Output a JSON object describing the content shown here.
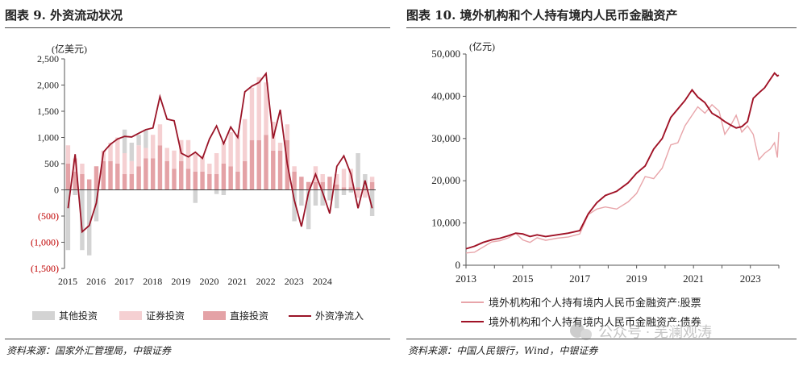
{
  "left_panel": {
    "title": "图表 9. 外资流动状况",
    "source": "资料来源：国家外汇管理局，中银证券"
  },
  "right_panel": {
    "title": "图表 10. 境外机构和个人持有境内人民币金融资产",
    "source": "资料来源：中国人民银行，Wind，中银证券"
  },
  "watermark": "公众号 · 芜澜观涛",
  "colors": {
    "other": "#d3d3d3",
    "securities": "#f5d0d2",
    "direct": "#e4a2a6",
    "net": "#9a1427",
    "stocks": "#e8a5aa",
    "bonds": "#a01226",
    "negative_tick": "#c00000"
  },
  "chart_data": [
    {
      "type": "bar",
      "title": "外资流动状况",
      "ylabel": "(亿美元)",
      "ylim": [
        -1500,
        2500
      ],
      "yticks": [
        2500,
        2000,
        1500,
        1000,
        500,
        0,
        -500,
        -1000,
        -1500
      ],
      "ytick_labels": [
        "2,500",
        "2,000",
        "1,500",
        "1,000",
        "500",
        "0",
        "(500)",
        "(1,000)",
        "(1,500)"
      ],
      "x_labels": [
        "2015",
        "2016",
        "2017",
        "2018",
        "2019",
        "2020",
        "2021",
        "2022",
        "2023",
        "2024"
      ],
      "quarters_start": "2015Q1",
      "series": [
        {
          "name": "其他投资",
          "kind": "bar",
          "values": [
            -1150,
            -100,
            -1150,
            -1250,
            -600,
            0,
            0,
            0,
            450,
            350,
            200,
            350,
            0,
            0,
            0,
            0,
            0,
            0,
            -250,
            0,
            0,
            -80,
            -100,
            0,
            0,
            0,
            0,
            0,
            0,
            0,
            0,
            0,
            -600,
            -300,
            -750,
            -300,
            -300,
            -200,
            -350,
            -100,
            -50,
            650,
            250,
            -500
          ]
        },
        {
          "name": "证券投资",
          "kind": "bar",
          "values": [
            350,
            250,
            200,
            0,
            0,
            200,
            350,
            500,
            400,
            250,
            400,
            200,
            450,
            400,
            250,
            350,
            400,
            550,
            350,
            300,
            200,
            400,
            400,
            650,
            700,
            800,
            1000,
            1200,
            1000,
            550,
            150,
            300,
            100,
            0,
            0,
            300,
            150,
            0,
            200,
            350,
            350,
            -150,
            -150,
            100
          ]
        },
        {
          "name": "直接投资",
          "kind": "bar",
          "values": [
            500,
            350,
            300,
            200,
            450,
            550,
            550,
            500,
            300,
            300,
            450,
            600,
            600,
            850,
            550,
            400,
            550,
            400,
            350,
            350,
            300,
            300,
            500,
            450,
            350,
            550,
            950,
            950,
            1050,
            750,
            750,
            950,
            350,
            250,
            150,
            150,
            150,
            250,
            100,
            50,
            50,
            50,
            50,
            150
          ]
        },
        {
          "name": "外资净流入",
          "kind": "line",
          "values": [
            -350,
            680,
            -800,
            -680,
            -250,
            720,
            870,
            970,
            1020,
            1010,
            1080,
            1150,
            1180,
            1780,
            1350,
            1320,
            700,
            630,
            720,
            600,
            970,
            1220,
            880,
            1200,
            1000,
            1870,
            1980,
            2050,
            2220,
            980,
            1530,
            500,
            -200,
            -700,
            -50,
            300,
            -50,
            -450,
            450,
            650,
            300,
            -350,
            180,
            -350
          ]
        }
      ]
    },
    {
      "type": "line",
      "title": "境外机构和个人持有境内人民币金融资产",
      "ylabel": "(亿元)",
      "ylim": [
        0,
        50000
      ],
      "yticks": [
        0,
        10000,
        20000,
        30000,
        40000,
        50000
      ],
      "ytick_labels": [
        "0",
        "10,000",
        "20,000",
        "30,000",
        "40,000",
        "50,000"
      ],
      "xlim": [
        2013,
        2024
      ],
      "x_labels": [
        "2013",
        "2015",
        "2017",
        "2019",
        "2021",
        "2023"
      ],
      "series": [
        {
          "name": "境外机构和个人持有境内人民币金融资产:股票",
          "x": [
            2013.0,
            2013.3,
            2013.6,
            2013.9,
            2014.2,
            2014.5,
            2014.75,
            2015.0,
            2015.25,
            2015.5,
            2015.8,
            2016.2,
            2016.6,
            2017.0,
            2017.3,
            2017.6,
            2017.9,
            2018.3,
            2018.7,
            2019.0,
            2019.3,
            2019.6,
            2019.9,
            2020.2,
            2020.45,
            2020.7,
            2020.95,
            2021.15,
            2021.4,
            2021.65,
            2021.9,
            2022.1,
            2022.3,
            2022.5,
            2022.7,
            2022.9,
            2023.1,
            2023.3,
            2023.5,
            2023.7,
            2023.85,
            2023.95,
            2024.0
          ],
          "values": [
            2900,
            3100,
            4300,
            5500,
            5800,
            6500,
            7600,
            6000,
            5400,
            6500,
            5900,
            6400,
            6700,
            7400,
            12000,
            13300,
            13800,
            13300,
            15000,
            17000,
            21000,
            20500,
            23000,
            28500,
            29000,
            33000,
            35500,
            37500,
            36000,
            38000,
            36500,
            31000,
            33000,
            35500,
            31500,
            33000,
            31000,
            25000,
            26500,
            27500,
            29000,
            25500,
            31500
          ]
        },
        {
          "name": "境外机构和个人持有境内人民币金融资产:债券",
          "x": [
            2013.0,
            2013.3,
            2013.6,
            2013.9,
            2014.2,
            2014.5,
            2014.75,
            2015.0,
            2015.25,
            2015.5,
            2015.8,
            2016.2,
            2016.6,
            2017.0,
            2017.3,
            2017.6,
            2017.9,
            2018.3,
            2018.7,
            2019.0,
            2019.3,
            2019.6,
            2019.9,
            2020.2,
            2020.45,
            2020.7,
            2020.95,
            2021.15,
            2021.4,
            2021.65,
            2021.9,
            2022.1,
            2022.3,
            2022.5,
            2022.7,
            2022.9,
            2023.1,
            2023.3,
            2023.5,
            2023.7,
            2023.85,
            2023.95,
            2024.0
          ],
          "values": [
            3900,
            4500,
            5400,
            6000,
            6400,
            7000,
            7600,
            7400,
            6800,
            7200,
            6800,
            7200,
            7600,
            8200,
            12200,
            14800,
            16500,
            17500,
            19500,
            21800,
            23500,
            27500,
            30000,
            35000,
            37000,
            39000,
            41500,
            39800,
            38500,
            36000,
            35000,
            34000,
            33200,
            32500,
            32800,
            34000,
            39500,
            40800,
            42000,
            44000,
            45500,
            44800,
            45000
          ]
        }
      ]
    }
  ]
}
